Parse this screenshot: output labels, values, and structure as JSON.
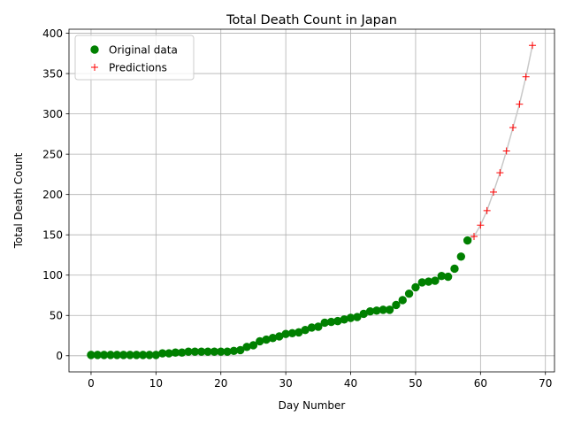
{
  "chart_data": {
    "type": "scatter",
    "title": "Total Death Count in Japan",
    "xlabel": "Day Number",
    "ylabel": "Total Death Count",
    "xlim": [
      -3.4,
      71.4
    ],
    "ylim": [
      -20,
      405
    ],
    "xticks": [
      0,
      10,
      20,
      30,
      40,
      50,
      60,
      70
    ],
    "yticks": [
      0,
      50,
      100,
      150,
      200,
      250,
      300,
      350,
      400
    ],
    "grid": true,
    "legend_position": "top-left",
    "series": [
      {
        "name": "Original data",
        "marker": "circle",
        "color": "#008000",
        "x": [
          0,
          1,
          2,
          3,
          4,
          5,
          6,
          7,
          8,
          9,
          10,
          11,
          12,
          13,
          14,
          15,
          16,
          17,
          18,
          19,
          20,
          21,
          22,
          23,
          24,
          25,
          26,
          27,
          28,
          29,
          30,
          31,
          32,
          33,
          34,
          35,
          36,
          37,
          38,
          39,
          40,
          41,
          42,
          43,
          44,
          45,
          46,
          47,
          48,
          49,
          50,
          51,
          52,
          53,
          54,
          55,
          56,
          57,
          58
        ],
        "y": [
          1,
          1,
          1,
          1,
          1,
          1,
          1,
          1,
          1,
          1,
          1,
          3,
          3,
          4,
          4,
          5,
          5,
          5,
          5,
          5,
          5,
          5,
          6,
          7,
          11,
          13,
          18,
          20,
          22,
          24,
          27,
          28,
          29,
          32,
          35,
          36,
          41,
          42,
          43,
          45,
          47,
          48,
          52,
          55,
          56,
          57,
          57,
          63,
          69,
          77,
          85,
          91,
          92,
          93,
          99,
          98,
          108,
          123,
          143
        ]
      },
      {
        "name": "Predictions",
        "marker": "plus",
        "color": "#ff0000",
        "x": [
          59,
          60,
          61,
          62,
          63,
          64,
          65,
          66,
          67,
          68
        ],
        "y": [
          148,
          162,
          180,
          203,
          227,
          254,
          283,
          312,
          346,
          385
        ]
      }
    ],
    "connector_line": {
      "color": "#c8c8c8",
      "x": [
        58,
        59,
        60,
        61,
        62,
        63,
        64,
        65,
        66,
        67,
        68
      ],
      "y": [
        143,
        148,
        162,
        180,
        203,
        227,
        254,
        283,
        312,
        346,
        385
      ]
    }
  }
}
